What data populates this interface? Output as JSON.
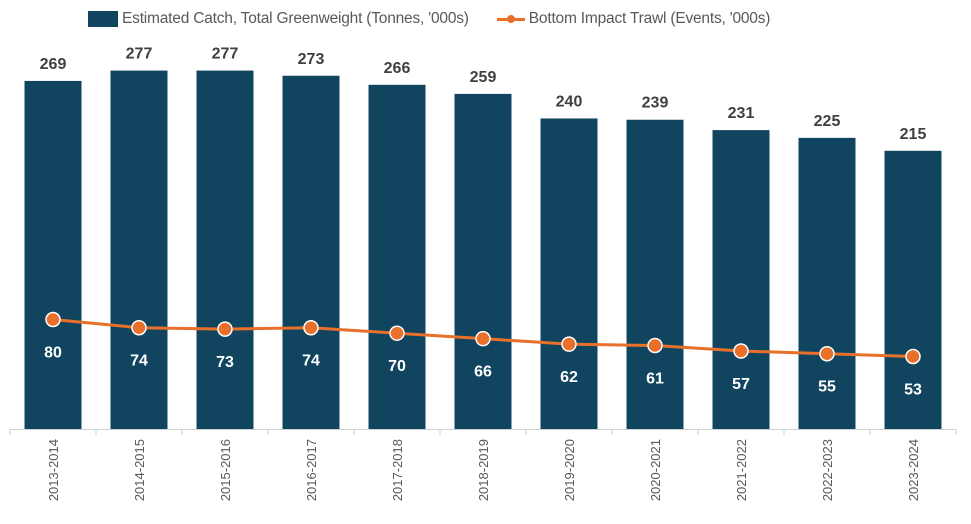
{
  "chart_data": {
    "type": "bar+line",
    "categories": [
      "2013-2014",
      "2014-2015",
      "2015-2016",
      "2016-2017",
      "2017-2018",
      "2018-2019",
      "2019-2020",
      "2020-2021",
      "2021-2022",
      "2022-2023",
      "2023-2024"
    ],
    "series": [
      {
        "name": "Estimated Catch, Total Greenweight (Tonnes, '000s)",
        "type": "bar",
        "axis": "primary",
        "color": "#10445F",
        "values": [
          269,
          277,
          277,
          273,
          266,
          259,
          240,
          239,
          231,
          225,
          215
        ]
      },
      {
        "name": "Bottom Impact Trawl (Events, '000s)",
        "type": "line",
        "axis": "secondary",
        "color": "#E8702A",
        "values": [
          80,
          74,
          73,
          74,
          70,
          66,
          62,
          61,
          57,
          55,
          53
        ]
      }
    ],
    "ylim": [
      0,
      330
    ],
    "y2lim": [
      0,
      312
    ],
    "axes_visible": false,
    "grid": false,
    "data_labels": true,
    "legend_position": "top"
  }
}
